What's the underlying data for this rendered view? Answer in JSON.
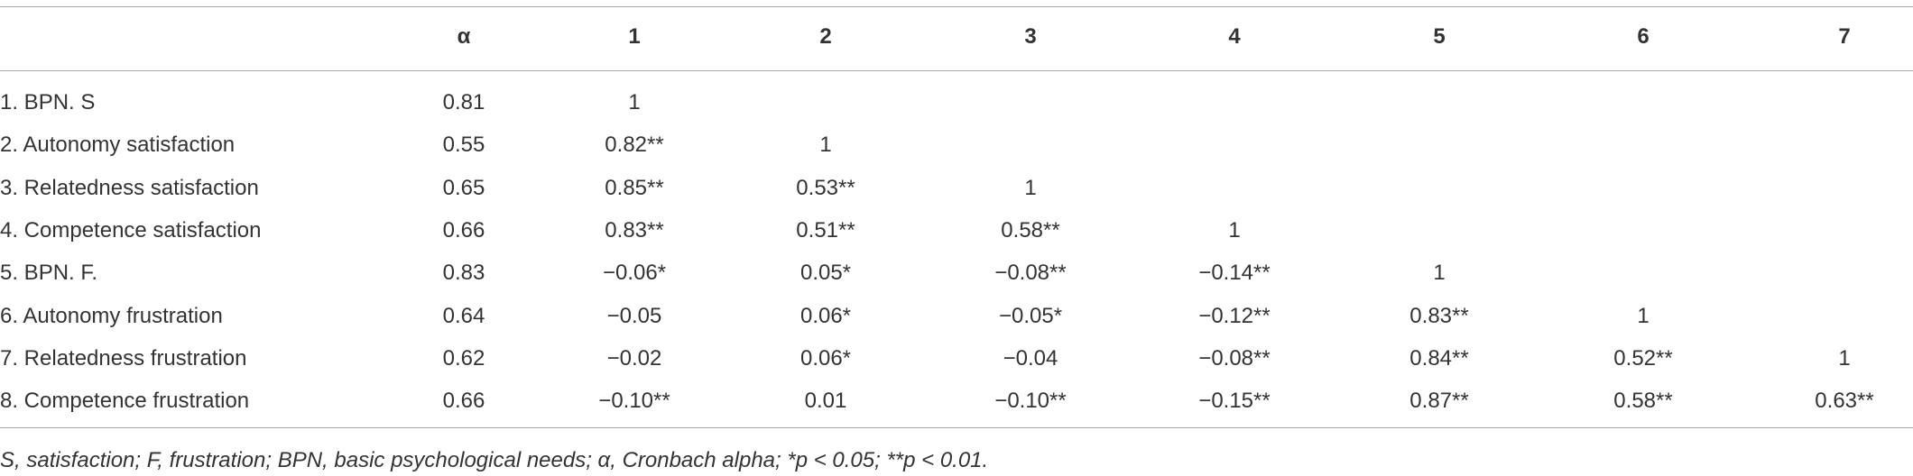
{
  "table": {
    "columns": [
      "α",
      "1",
      "2",
      "3",
      "4",
      "5",
      "6",
      "7"
    ],
    "rows": [
      {
        "label": "1. BPN. S",
        "cells": [
          "0.81",
          "1"
        ]
      },
      {
        "label": "2. Autonomy satisfaction",
        "cells": [
          "0.55",
          "0.82**",
          "1"
        ]
      },
      {
        "label": "3. Relatedness satisfaction",
        "cells": [
          "0.65",
          "0.85**",
          "0.53**",
          "1"
        ]
      },
      {
        "label": "4. Competence satisfaction",
        "cells": [
          "0.66",
          "0.83**",
          "0.51**",
          "0.58**",
          "1"
        ]
      },
      {
        "label": "5. BPN. F.",
        "cells": [
          "0.83",
          "−0.06*",
          "0.05*",
          "−0.08**",
          "−0.14**",
          "1"
        ]
      },
      {
        "label": "6. Autonomy frustration",
        "cells": [
          "0.64",
          "−0.05",
          "0.06*",
          "−0.05*",
          "−0.12**",
          "0.83**",
          "1"
        ]
      },
      {
        "label": "7. Relatedness frustration",
        "cells": [
          "0.62",
          "−0.02",
          "0.06*",
          "−0.04",
          "−0.08**",
          "0.84**",
          "0.52**",
          "1"
        ]
      },
      {
        "label": "8. Competence frustration",
        "cells": [
          "0.66",
          "−0.10**",
          "0.01",
          "−0.10**",
          "−0.15**",
          "0.87**",
          "0.58**",
          "0.63**"
        ]
      }
    ],
    "footnote": "S, satisfaction; F, frustration; BPN, basic psychological needs; α, Cronbach alpha; *p < 0.05; **p < 0.01."
  }
}
